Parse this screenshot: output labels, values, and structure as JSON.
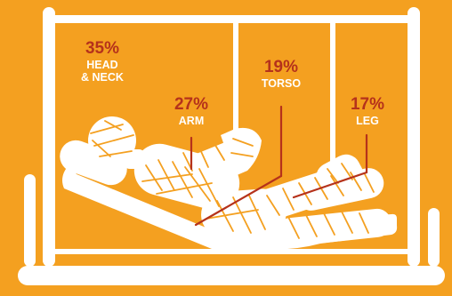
{
  "colors": {
    "background": "#F4A020",
    "frame": "#FFFFFF",
    "percent": "#B5321B",
    "part": "#FFFFFF",
    "lines": "#B5321B"
  },
  "icons": [
    "hospital-bed-icon",
    "bandaged-patient-icon"
  ],
  "injuries": [
    {
      "percent": "35%",
      "part": "HEAD\n& NECK"
    },
    {
      "percent": "27%",
      "part": "ARM"
    },
    {
      "percent": "19%",
      "part": "TORSO"
    },
    {
      "percent": "17%",
      "part": "LEG"
    }
  ]
}
